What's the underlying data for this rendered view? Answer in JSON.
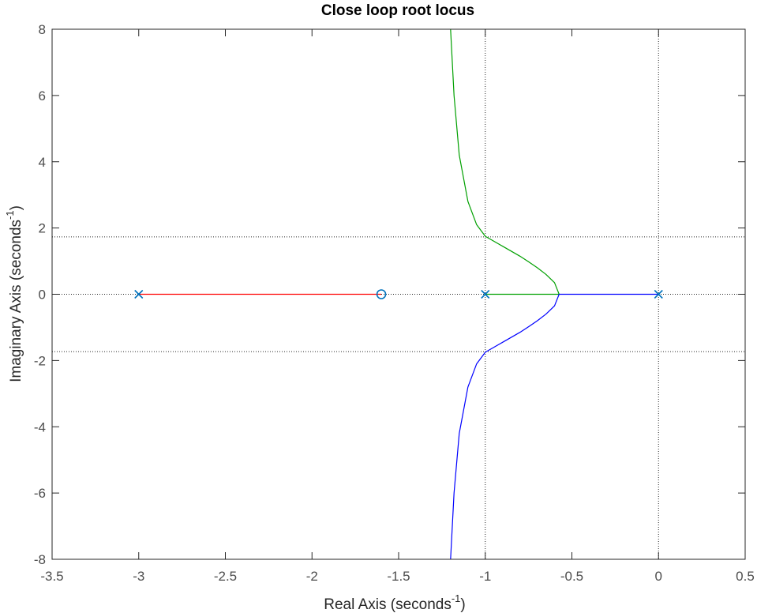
{
  "chart_data": {
    "type": "line",
    "title": "Close loop root locus",
    "xlabel": "Real Axis (seconds",
    "xlabel_sup": "-1",
    "xlabel_tail": ")",
    "ylabel": "Imaginary Axis (seconds",
    "ylabel_sup": "-1",
    "ylabel_tail": ")",
    "xlim": [
      -3.5,
      0.5
    ],
    "ylim": [
      -8,
      8
    ],
    "x_ticks": [
      -3.5,
      -3,
      -2.5,
      -2,
      -1.5,
      -1,
      -0.5,
      0,
      0.5
    ],
    "y_ticks": [
      -8,
      -6,
      -4,
      -2,
      0,
      2,
      4,
      6,
      8
    ],
    "x_tick_labels": [
      "-3.5",
      "-3",
      "-2.5",
      "-2",
      "-1.5",
      "-1",
      "-0.5",
      "0",
      "0.5"
    ],
    "y_tick_labels": [
      "-8",
      "-6",
      "-4",
      "-2",
      "0",
      "2",
      "4",
      "6",
      "8"
    ],
    "grid": false,
    "poles": [
      [
        -3,
        0
      ],
      [
        -1,
        0
      ],
      [
        0,
        0
      ]
    ],
    "zeros": [
      [
        -1.6,
        0
      ]
    ],
    "pole_color": "#0072bd",
    "zero_color": "#0072bd",
    "reference_lines": {
      "vertical_x": [
        -1,
        0
      ],
      "horizontal_y": [
        1.732,
        -1.732,
        0
      ]
    },
    "series": [
      {
        "color": "#ff0000",
        "x": [
          -3,
          -1.6
        ],
        "y": [
          0,
          0
        ]
      },
      {
        "color": "#00a000",
        "x": [
          -1,
          -0.574,
          -0.6,
          -0.65,
          -0.7,
          -0.75,
          -0.8,
          -0.9,
          -1,
          -1.05,
          -1.1,
          -1.15,
          -1.18,
          -1.2
        ],
        "y": [
          0,
          0,
          0.35,
          0.6,
          0.8,
          0.98,
          1.15,
          1.45,
          1.75,
          2.1,
          2.8,
          4.2,
          6.0,
          8.0
        ]
      },
      {
        "color": "#0000ff",
        "x": [
          0,
          -0.574,
          -0.6,
          -0.65,
          -0.7,
          -0.75,
          -0.8,
          -0.9,
          -1,
          -1.05,
          -1.1,
          -1.15,
          -1.18,
          -1.2
        ],
        "y": [
          0,
          0,
          -0.35,
          -0.6,
          -0.8,
          -0.98,
          -1.15,
          -1.45,
          -1.75,
          -2.1,
          -2.8,
          -4.2,
          -6.0,
          -8.0
        ]
      }
    ]
  }
}
